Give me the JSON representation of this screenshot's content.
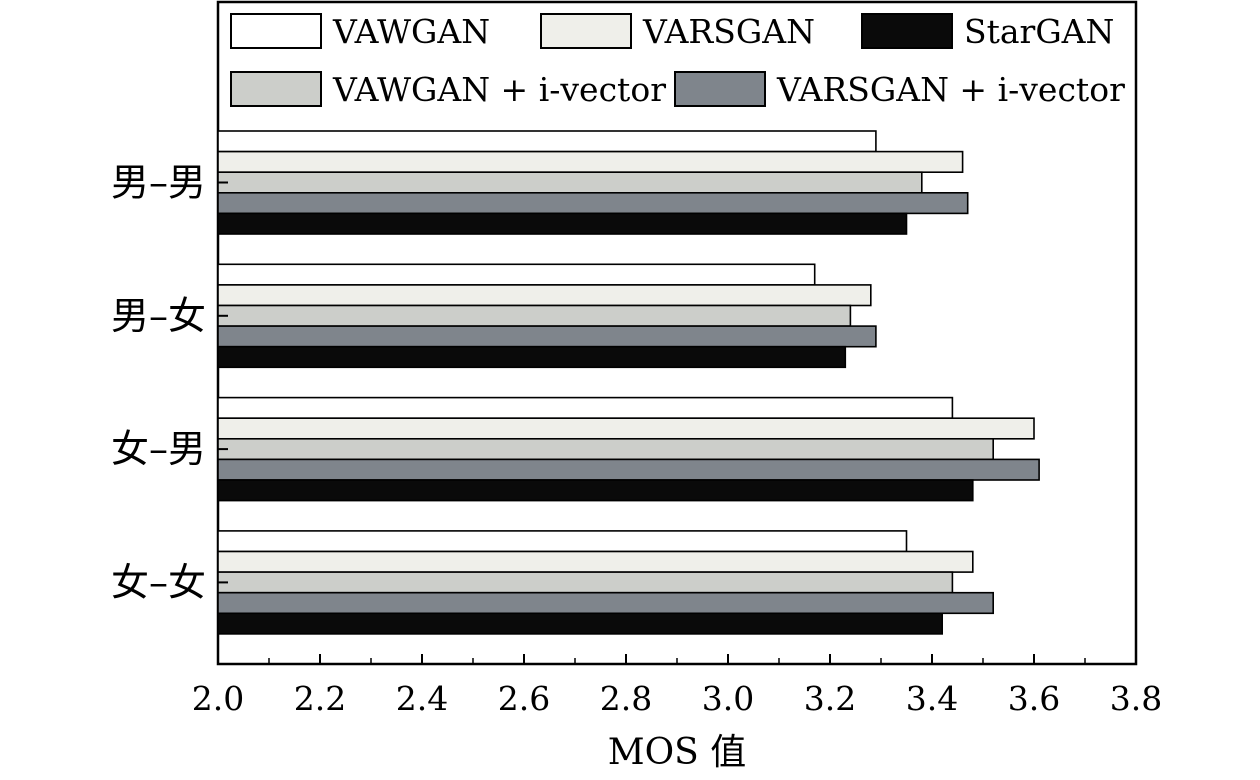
{
  "chart_data": {
    "type": "bar",
    "orientation": "horizontal",
    "title": "",
    "xlabel": "MOS 值",
    "ylabel": "",
    "xlim": [
      2.0,
      3.8
    ],
    "xticks": [
      "2.0",
      "2.2",
      "2.4",
      "2.6",
      "2.8",
      "3.0",
      "3.2",
      "3.4",
      "3.6",
      "3.8"
    ],
    "grid": false,
    "legend_position": "top",
    "categories": [
      "男–男",
      "男–女",
      "女–男",
      "女–女"
    ],
    "series": [
      {
        "name": "VAWGAN",
        "color": "#ffffff",
        "values": [
          3.29,
          3.17,
          3.44,
          3.35
        ]
      },
      {
        "name": "VARSGAN",
        "color": "#efefea",
        "values": [
          3.46,
          3.28,
          3.6,
          3.48
        ]
      },
      {
        "name": "VAWGAN + i-vector",
        "color": "#ccceca",
        "values": [
          3.38,
          3.24,
          3.52,
          3.44
        ]
      },
      {
        "name": "VARSGAN + i-vector",
        "color": "#7f858c",
        "values": [
          3.47,
          3.29,
          3.61,
          3.52
        ]
      },
      {
        "name": "StarGAN",
        "color": "#0a0a0a",
        "values": [
          3.35,
          3.23,
          3.48,
          3.42
        ]
      }
    ]
  }
}
